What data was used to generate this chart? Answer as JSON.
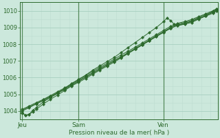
{
  "xlabel": "Pression niveau de la mer( hPa )",
  "bg_color": "#cce8dc",
  "line_color": "#2d6a2d",
  "grid_color_major": "#a8cfc0",
  "grid_color_minor": "#bdddd0",
  "tick_label_color": "#2d6a2d",
  "ylim": [
    1003.5,
    1010.5
  ],
  "xlim": [
    -2,
    166
  ],
  "yticks": [
    1004,
    1005,
    1006,
    1007,
    1008,
    1009,
    1010
  ],
  "day_labels": [
    "Jeu",
    "Sam",
    "Ven"
  ],
  "day_positions": [
    0,
    48,
    120
  ],
  "series": [
    {
      "name": "s1_spike",
      "xs": [
        0,
        3,
        6,
        9,
        12,
        18,
        24,
        30,
        36,
        42,
        48,
        54,
        60,
        66,
        72,
        78,
        84,
        90,
        96,
        102,
        108,
        114,
        120,
        123,
        126,
        129,
        132,
        138,
        144,
        150,
        156,
        162,
        165
      ],
      "ys": [
        1003.9,
        1003.75,
        1003.8,
        1004.05,
        1004.2,
        1004.55,
        1004.8,
        1005.05,
        1005.35,
        1005.65,
        1005.9,
        1006.15,
        1006.45,
        1006.7,
        1006.95,
        1007.2,
        1007.5,
        1007.8,
        1008.1,
        1008.4,
        1008.7,
        1009.0,
        1009.35,
        1009.55,
        1009.42,
        1009.2,
        1009.1,
        1009.2,
        1009.3,
        1009.5,
        1009.7,
        1009.95,
        1010.1
      ]
    },
    {
      "name": "s2_linear",
      "xs": [
        0,
        6,
        12,
        18,
        24,
        30,
        36,
        42,
        48,
        54,
        60,
        66,
        72,
        78,
        84,
        90,
        96,
        102,
        108,
        114,
        120,
        126,
        132,
        138,
        144,
        150,
        156,
        162,
        165
      ],
      "ys": [
        1004.05,
        1004.25,
        1004.45,
        1004.65,
        1004.88,
        1005.1,
        1005.32,
        1005.58,
        1005.82,
        1006.05,
        1006.3,
        1006.55,
        1006.78,
        1007.02,
        1007.25,
        1007.5,
        1007.75,
        1008.0,
        1008.25,
        1008.5,
        1008.75,
        1009.0,
        1009.2,
        1009.3,
        1009.42,
        1009.6,
        1009.78,
        1009.95,
        1010.08
      ]
    },
    {
      "name": "s3_linear2",
      "xs": [
        0,
        6,
        12,
        18,
        24,
        30,
        36,
        42,
        48,
        54,
        60,
        66,
        72,
        78,
        84,
        90,
        96,
        102,
        108,
        114,
        120,
        126,
        132,
        138,
        144,
        150,
        156,
        162,
        165
      ],
      "ys": [
        1004.1,
        1004.3,
        1004.5,
        1004.7,
        1004.92,
        1005.15,
        1005.38,
        1005.62,
        1005.88,
        1006.12,
        1006.38,
        1006.62,
        1006.85,
        1007.1,
        1007.35,
        1007.58,
        1007.82,
        1008.07,
        1008.32,
        1008.57,
        1008.82,
        1009.07,
        1009.25,
        1009.35,
        1009.48,
        1009.65,
        1009.82,
        1010.0,
        1010.12
      ]
    },
    {
      "name": "s4_linear3",
      "xs": [
        0,
        6,
        12,
        18,
        24,
        30,
        36,
        42,
        48,
        54,
        60,
        66,
        72,
        78,
        84,
        90,
        96,
        102,
        108,
        114,
        120,
        126,
        132,
        138,
        144,
        150,
        156,
        162,
        165
      ],
      "ys": [
        1004.0,
        1004.2,
        1004.42,
        1004.62,
        1004.84,
        1005.06,
        1005.28,
        1005.54,
        1005.78,
        1006.02,
        1006.26,
        1006.5,
        1006.74,
        1006.98,
        1007.22,
        1007.46,
        1007.7,
        1007.95,
        1008.2,
        1008.45,
        1008.7,
        1008.95,
        1009.15,
        1009.25,
        1009.38,
        1009.55,
        1009.72,
        1009.9,
        1010.02
      ]
    },
    {
      "name": "s5_wide",
      "xs": [
        0,
        3,
        6,
        9,
        12,
        18,
        24,
        30,
        36,
        42,
        48,
        54,
        60,
        66,
        72,
        78,
        84,
        90,
        96,
        102,
        108,
        114,
        120,
        126,
        132,
        138,
        144,
        150,
        156,
        162,
        165
      ],
      "ys": [
        1003.85,
        1003.75,
        1003.8,
        1003.95,
        1004.1,
        1004.42,
        1004.7,
        1004.95,
        1005.22,
        1005.5,
        1005.72,
        1005.95,
        1006.2,
        1006.45,
        1006.68,
        1006.92,
        1007.18,
        1007.44,
        1007.7,
        1007.96,
        1008.22,
        1008.5,
        1008.72,
        1008.95,
        1009.12,
        1009.22,
        1009.35,
        1009.52,
        1009.68,
        1009.85,
        1009.98
      ]
    }
  ]
}
